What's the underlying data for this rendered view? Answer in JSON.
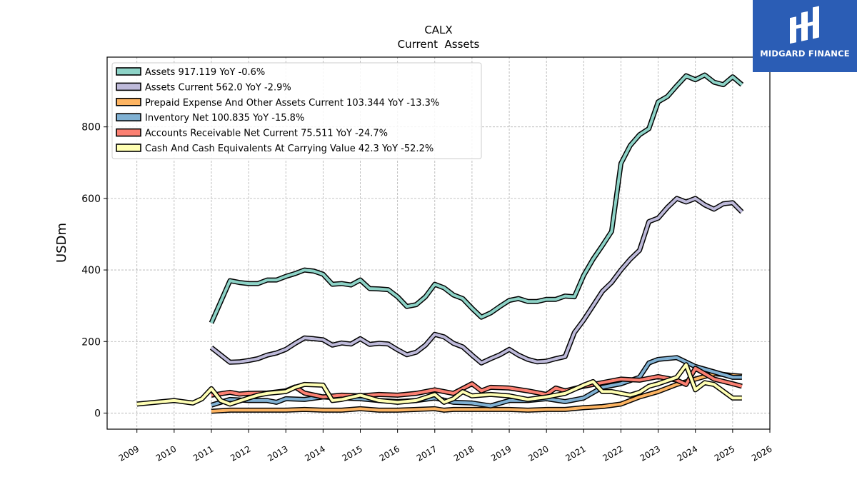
{
  "chart_data": {
    "type": "line",
    "title": "CALX",
    "subtitle": "Current  Assets",
    "xlabel": "",
    "ylabel": "USDm",
    "xlim": [
      2008.2,
      2026.0
    ],
    "ylim": [
      -45,
      995
    ],
    "x_ticks": [
      "2009",
      "2010",
      "2011",
      "2012",
      "2013",
      "2014",
      "2015",
      "2016",
      "2017",
      "2018",
      "2019",
      "2020",
      "2021",
      "2022",
      "2023",
      "2024",
      "2025",
      "2026"
    ],
    "y_ticks": [
      "0",
      "200",
      "400",
      "600",
      "800"
    ],
    "grid": true,
    "legend_position": "top-left",
    "series": [
      {
        "name": "Assets",
        "legend_label": "Assets  917.119 YoY -0.6%",
        "color": "#8dd3c7",
        "x": [
          2011.0,
          2011.5,
          2011.75,
          2012.0,
          2012.25,
          2012.5,
          2012.75,
          2013.0,
          2013.25,
          2013.5,
          2013.75,
          2014.0,
          2014.25,
          2014.5,
          2014.75,
          2015.0,
          2015.25,
          2015.5,
          2015.75,
          2016.0,
          2016.25,
          2016.5,
          2016.75,
          2017.0,
          2017.25,
          2017.5,
          2017.75,
          2018.0,
          2018.25,
          2018.5,
          2018.75,
          2019.0,
          2019.25,
          2019.5,
          2019.75,
          2020.0,
          2020.25,
          2020.5,
          2020.75,
          2021.0,
          2021.25,
          2021.5,
          2021.75,
          2022.0,
          2022.25,
          2022.5,
          2022.75,
          2023.0,
          2023.25,
          2023.5,
          2023.75,
          2024.0,
          2024.25,
          2024.5,
          2024.75,
          2025.0,
          2025.25
        ],
        "y": [
          252,
          370,
          365,
          362,
          362,
          372,
          372,
          382,
          390,
          400,
          397,
          388,
          360,
          362,
          358,
          372,
          348,
          347,
          345,
          325,
          298,
          303,
          325,
          360,
          350,
          330,
          320,
          293,
          268,
          280,
          298,
          315,
          320,
          312,
          312,
          318,
          318,
          327,
          325,
          385,
          430,
          468,
          508,
          698,
          748,
          778,
          795,
          870,
          885,
          915,
          943,
          932,
          945,
          925,
          918,
          940,
          918
        ]
      },
      {
        "name": "Assets Current",
        "legend_label": "Assets Current  562.0 YoY -2.9%",
        "color": "#bebada",
        "x": [
          2011.0,
          2011.5,
          2011.75,
          2012.0,
          2012.25,
          2012.5,
          2012.75,
          2013.0,
          2013.25,
          2013.5,
          2013.75,
          2014.0,
          2014.25,
          2014.5,
          2014.75,
          2015.0,
          2015.25,
          2015.5,
          2015.75,
          2016.0,
          2016.25,
          2016.5,
          2016.75,
          2017.0,
          2017.25,
          2017.5,
          2017.75,
          2018.0,
          2018.25,
          2018.5,
          2018.75,
          2019.0,
          2019.25,
          2019.5,
          2019.75,
          2020.0,
          2020.25,
          2020.5,
          2020.75,
          2021.0,
          2021.25,
          2021.5,
          2021.75,
          2022.0,
          2022.25,
          2022.5,
          2022.75,
          2023.0,
          2023.25,
          2023.5,
          2023.75,
          2024.0,
          2024.25,
          2024.5,
          2024.75,
          2025.0,
          2025.25
        ],
        "y": [
          183,
          142,
          143,
          147,
          152,
          162,
          168,
          178,
          195,
          210,
          208,
          205,
          190,
          196,
          193,
          208,
          192,
          195,
          193,
          177,
          163,
          170,
          190,
          220,
          213,
          195,
          185,
          162,
          140,
          152,
          163,
          178,
          162,
          150,
          143,
          145,
          152,
          158,
          225,
          260,
          300,
          340,
          365,
          400,
          430,
          455,
          535,
          545,
          575,
          600,
          590,
          600,
          582,
          570,
          585,
          588,
          562
        ]
      },
      {
        "name": "Prepaid Expense And Other Assets Current",
        "legend_label": "Prepaid Expense And Other Assets Current  103.344 YoY -13.3%",
        "color": "#fdb462",
        "x": [
          2011.0,
          2011.5,
          2012.0,
          2012.5,
          2013.0,
          2013.5,
          2014.0,
          2014.5,
          2015.0,
          2015.5,
          2016.0,
          2016.5,
          2017.0,
          2017.25,
          2017.5,
          2018.0,
          2018.5,
          2019.0,
          2019.5,
          2020.0,
          2020.5,
          2021.0,
          2021.5,
          2022.0,
          2022.5,
          2023.0,
          2023.5,
          2024.0,
          2024.5,
          2024.75,
          2025.0,
          2025.25
        ],
        "y": [
          5,
          8,
          8,
          8,
          8,
          10,
          8,
          8,
          12,
          8,
          8,
          10,
          12,
          8,
          10,
          10,
          10,
          10,
          8,
          10,
          10,
          15,
          18,
          25,
          45,
          60,
          80,
          95,
          110,
          108,
          105,
          103
        ]
      },
      {
        "name": "Inventory Net",
        "legend_label": "Inventory Net  100.835 YoY -15.8%",
        "color": "#80b1d3",
        "x": [
          2011.0,
          2011.5,
          2012.0,
          2012.5,
          2012.75,
          2013.0,
          2013.5,
          2014.0,
          2014.5,
          2015.0,
          2015.5,
          2016.0,
          2016.5,
          2017.0,
          2017.5,
          2018.0,
          2018.5,
          2019.0,
          2019.5,
          2020.0,
          2020.5,
          2021.0,
          2021.5,
          2022.0,
          2022.5,
          2022.75,
          2023.0,
          2023.5,
          2024.0,
          2024.5,
          2025.0,
          2025.25
        ],
        "y": [
          22,
          38,
          35,
          35,
          30,
          40,
          38,
          45,
          42,
          40,
          35,
          32,
          35,
          42,
          30,
          28,
          20,
          35,
          35,
          40,
          32,
          42,
          72,
          82,
          100,
          140,
          150,
          155,
          130,
          115,
          100,
          100
        ]
      },
      {
        "name": "Accounts Receivable Net Current",
        "legend_label": "Accounts Receivable Net Current  75.511 YoY -24.7%",
        "color": "#fb8072",
        "x": [
          2011.0,
          2011.5,
          2011.75,
          2012.0,
          2012.5,
          2013.0,
          2013.25,
          2013.5,
          2014.0,
          2014.5,
          2015.0,
          2015.5,
          2016.0,
          2016.5,
          2017.0,
          2017.5,
          2018.0,
          2018.25,
          2018.5,
          2019.0,
          2019.5,
          2020.0,
          2020.25,
          2020.5,
          2021.0,
          2021.5,
          2022.0,
          2022.5,
          2023.0,
          2023.5,
          2023.75,
          2024.0,
          2024.5,
          2025.0,
          2025.25
        ],
        "y": [
          50,
          58,
          53,
          55,
          56,
          62,
          73,
          56,
          45,
          50,
          48,
          52,
          50,
          55,
          65,
          55,
          82,
          62,
          72,
          70,
          62,
          52,
          70,
          62,
          75,
          85,
          95,
          92,
          102,
          92,
          80,
          125,
          95,
          82,
          75
        ]
      },
      {
        "name": "Cash And Cash Equivalents At Carrying Value",
        "legend_label": "Cash And Cash Equivalents At Carrying Value  42.3 YoY -52.2%",
        "color": "#ffffb3",
        "x": [
          2009.0,
          2009.5,
          2010.0,
          2010.5,
          2010.75,
          2011.0,
          2011.25,
          2011.5,
          2012.0,
          2012.25,
          2012.5,
          2013.0,
          2013.25,
          2013.5,
          2014.0,
          2014.25,
          2014.5,
          2015.0,
          2015.5,
          2016.0,
          2016.5,
          2017.0,
          2017.25,
          2017.5,
          2017.75,
          2018.0,
          2018.5,
          2019.0,
          2019.5,
          2020.0,
          2020.5,
          2021.0,
          2021.25,
          2021.5,
          2021.75,
          2022.0,
          2022.25,
          2022.5,
          2022.75,
          2023.0,
          2023.5,
          2023.75,
          2024.0,
          2024.25,
          2024.5,
          2025.0,
          2025.25
        ],
        "y": [
          25,
          30,
          35,
          28,
          40,
          68,
          35,
          25,
          42,
          50,
          55,
          60,
          72,
          80,
          78,
          35,
          38,
          50,
          35,
          30,
          35,
          52,
          30,
          40,
          60,
          48,
          52,
          48,
          38,
          45,
          55,
          78,
          88,
          60,
          60,
          55,
          50,
          58,
          75,
          82,
          100,
          135,
          65,
          85,
          80,
          42,
          42
        ]
      }
    ]
  },
  "branding": {
    "company": "MIDGARD FINANCE"
  }
}
